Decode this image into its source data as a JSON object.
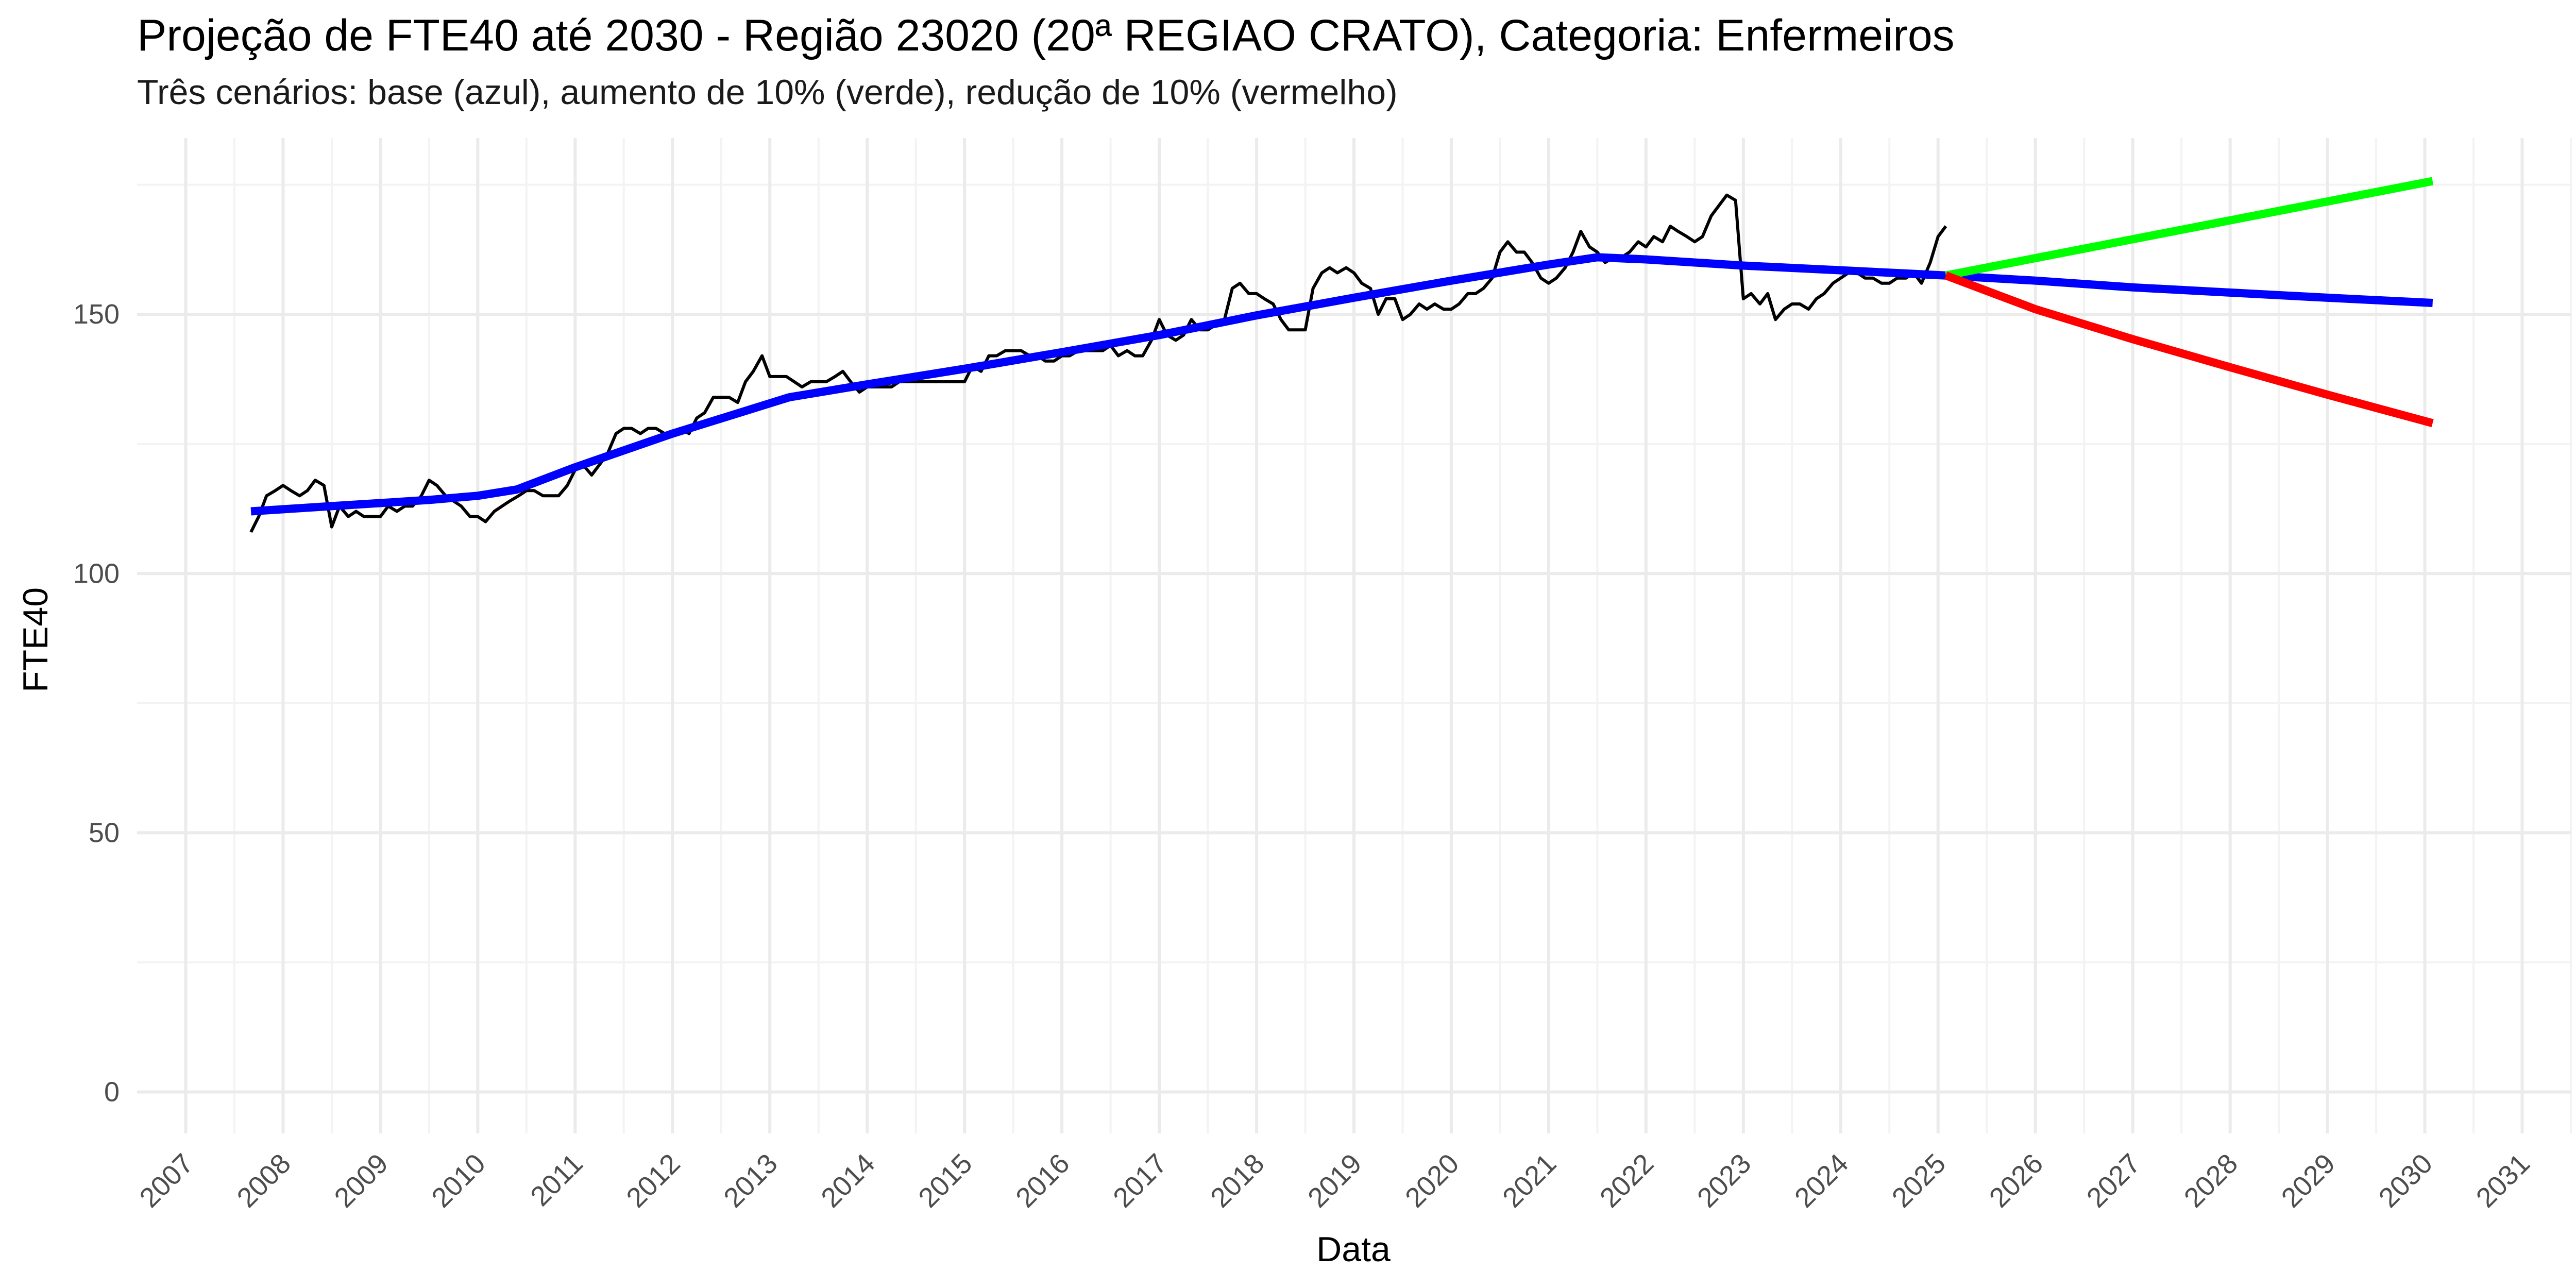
{
  "chart_data": {
    "type": "line",
    "title": "Projeção de FTE40 até 2030 - Região 23020 (20ª REGIAO CRATO), Categoria: Enfermeiros",
    "subtitle": "Três cenários: base (azul), aumento de 10% (verde), redução de 10% (vermelho)",
    "xlabel": "Data",
    "ylabel": "FTE40",
    "x_ticks": [
      "2007",
      "2008",
      "2009",
      "2010",
      "2011",
      "2012",
      "2013",
      "2014",
      "2015",
      "2016",
      "2017",
      "2018",
      "2019",
      "2020",
      "2021",
      "2022",
      "2023",
      "2024",
      "2025",
      "2026",
      "2027",
      "2028",
      "2029",
      "2030",
      "2031"
    ],
    "xlim": [
      2006.5,
      2031.5
    ],
    "ylim": [
      -8,
      184
    ],
    "y_ticks": [
      0,
      50,
      100,
      150
    ],
    "grid": true,
    "series": [
      {
        "color": "#000000",
        "x": [
          2007.67,
          2007.75,
          2007.83,
          2007.92,
          2008.0,
          2008.08,
          2008.17,
          2008.25,
          2008.33,
          2008.42,
          2008.5,
          2008.58,
          2008.67,
          2008.75,
          2008.83,
          2008.92,
          2009.0,
          2009.08,
          2009.17,
          2009.25,
          2009.33,
          2009.42,
          2009.5,
          2009.58,
          2009.67,
          2009.75,
          2009.83,
          2009.92,
          2010.0,
          2010.08,
          2010.17,
          2010.25,
          2010.33,
          2010.42,
          2010.5,
          2010.58,
          2010.67,
          2010.75,
          2010.83,
          2010.92,
          2011.0,
          2011.08,
          2011.17,
          2011.25,
          2011.33,
          2011.42,
          2011.5,
          2011.58,
          2011.67,
          2011.75,
          2011.83,
          2011.92,
          2012.0,
          2012.08,
          2012.17,
          2012.25,
          2012.33,
          2012.42,
          2012.5,
          2012.58,
          2012.67,
          2012.75,
          2012.83,
          2012.92,
          2013.0,
          2013.08,
          2013.17,
          2013.25,
          2013.33,
          2013.42,
          2013.5,
          2013.58,
          2013.67,
          2013.75,
          2013.83,
          2013.92,
          2014.0,
          2014.08,
          2014.17,
          2014.25,
          2014.33,
          2014.42,
          2014.5,
          2014.58,
          2014.67,
          2014.75,
          2014.83,
          2014.92,
          2015.0,
          2015.08,
          2015.17,
          2015.25,
          2015.33,
          2015.42,
          2015.5,
          2015.58,
          2015.67,
          2015.75,
          2015.83,
          2015.92,
          2016.0,
          2016.08,
          2016.17,
          2016.25,
          2016.33,
          2016.42,
          2016.5,
          2016.58,
          2016.67,
          2016.75,
          2016.83,
          2016.92,
          2017.0,
          2017.08,
          2017.17,
          2017.25,
          2017.33,
          2017.42,
          2017.5,
          2017.58,
          2017.67,
          2017.75,
          2017.83,
          2017.92,
          2018.0,
          2018.08,
          2018.17,
          2018.25,
          2018.33,
          2018.42,
          2018.5,
          2018.58,
          2018.67,
          2018.75,
          2018.83,
          2018.92,
          2019.0,
          2019.08,
          2019.17,
          2019.25,
          2019.33,
          2019.42,
          2019.5,
          2019.58,
          2019.67,
          2019.75,
          2019.83,
          2019.92,
          2020.0,
          2020.08,
          2020.17,
          2020.25,
          2020.33,
          2020.42,
          2020.5,
          2020.58,
          2020.67,
          2020.75,
          2020.83,
          2020.92,
          2021.0,
          2021.08,
          2021.17,
          2021.25,
          2021.33,
          2021.42,
          2021.5,
          2021.58,
          2021.67,
          2021.75,
          2021.83,
          2021.92,
          2022.0,
          2022.08,
          2022.17,
          2022.25,
          2022.33,
          2022.42,
          2022.5,
          2022.58,
          2022.67,
          2022.75,
          2022.83,
          2022.92,
          2023.0,
          2023.08,
          2023.17,
          2023.25,
          2023.33,
          2023.42,
          2023.5,
          2023.58,
          2023.67,
          2023.75,
          2023.83,
          2023.92,
          2024.0,
          2024.08,
          2024.17,
          2024.25,
          2024.33,
          2024.42,
          2024.5,
          2024.58,
          2024.67,
          2024.75,
          2024.83,
          2024.92,
          2025.0,
          2025.08
        ],
        "y": [
          108,
          111,
          115,
          116,
          117,
          116,
          115,
          116,
          118,
          117,
          109,
          113,
          111,
          112,
          111,
          111,
          111,
          113,
          112,
          113,
          113,
          115,
          118,
          117,
          115,
          114,
          113,
          111,
          111,
          110,
          112,
          113,
          114,
          115,
          116,
          116,
          115,
          115,
          115,
          117,
          120,
          121,
          119,
          121,
          123,
          127,
          128,
          128,
          127,
          128,
          128,
          127,
          127,
          128,
          127,
          130,
          131,
          134,
          134,
          134,
          133,
          137,
          139,
          142,
          138,
          138,
          138,
          137,
          136,
          137,
          137,
          137,
          138,
          139,
          137,
          135,
          136,
          136,
          136,
          136,
          137,
          137,
          137,
          137,
          137,
          137,
          137,
          137,
          137,
          140,
          139,
          142,
          142,
          143,
          143,
          143,
          142,
          142,
          141,
          141,
          142,
          142,
          143,
          143,
          143,
          143,
          144,
          142,
          143,
          142,
          142,
          145,
          149,
          146,
          145,
          146,
          149,
          147,
          147,
          148,
          149,
          155,
          156,
          154,
          154,
          153,
          152,
          149,
          147,
          147,
          147,
          155,
          158,
          159,
          158,
          159,
          158,
          156,
          155,
          150,
          153,
          153,
          149,
          150,
          152,
          151,
          152,
          151,
          151,
          152,
          154,
          154,
          155,
          157,
          162,
          164,
          162,
          162,
          160,
          157,
          156,
          157,
          159,
          162,
          166,
          163,
          162,
          160,
          161,
          161,
          162,
          164,
          163,
          165,
          164,
          167,
          166,
          165,
          164,
          165,
          169,
          171,
          173,
          172,
          153,
          154,
          152,
          154,
          149,
          151,
          152,
          152,
          151,
          153,
          154,
          156,
          157,
          158,
          158,
          157,
          157,
          156,
          156,
          157,
          157,
          158,
          156,
          160,
          165,
          167
        ]
      },
      {
        "color": "#0000ff",
        "x": [
          2007.67,
          2008.5,
          2009.5,
          2010.0,
          2010.4,
          2011.0,
          2012.0,
          2013.2,
          2014.0,
          2015.0,
          2016.0,
          2017.0,
          2018.0,
          2019.0,
          2020.0,
          2021.0,
          2021.5,
          2022.0,
          2023.0,
          2024.0,
          2025.08,
          2026.0,
          2027.0,
          2028.0,
          2029.0,
          2030.08
        ],
        "y": [
          112,
          113,
          114.2,
          115,
          116.2,
          120.5,
          127,
          134,
          136.5,
          139.5,
          142.7,
          146,
          149.8,
          153.2,
          156.5,
          159.6,
          161,
          160.6,
          159.4,
          158.5,
          157.5,
          156.5,
          155.2,
          154.2,
          153.2,
          152.2
        ]
      },
      {
        "color": "#00ff00",
        "x": [
          2025.08,
          2030.08
        ],
        "y": [
          157.5,
          175.7
        ]
      },
      {
        "color": "#ff0000",
        "x": [
          2025.08,
          2026.0,
          2027.0,
          2028.0,
          2029.0,
          2030.08
        ],
        "y": [
          157.5,
          151,
          145.2,
          139.8,
          134.5,
          129
        ]
      }
    ]
  }
}
